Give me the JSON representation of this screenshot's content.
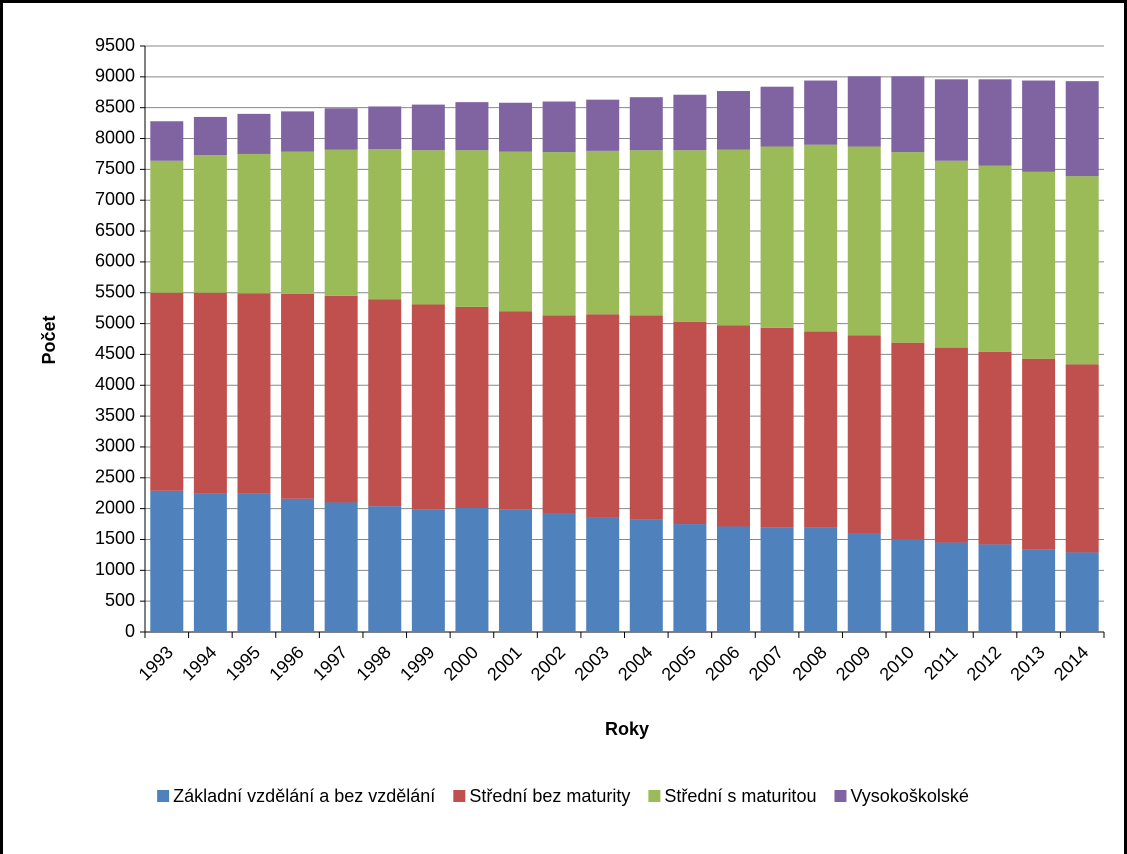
{
  "chart_data": {
    "type": "stacked_bar",
    "x_label": "Roky",
    "y_label": "Počet",
    "categories": [
      "1993",
      "1994",
      "1995",
      "1996",
      "1997",
      "1998",
      "1999",
      "2000",
      "2001",
      "2002",
      "2003",
      "2004",
      "2005",
      "2006",
      "2007",
      "2008",
      "2009",
      "2010",
      "2011",
      "2012",
      "2013",
      "2014"
    ],
    "series": [
      {
        "name": "Základní vzdělání a bez vzdělání",
        "color": "#4f81bd",
        "values": [
          2290,
          2240,
          2240,
          2160,
          2100,
          2040,
          1990,
          2010,
          1990,
          1920,
          1850,
          1820,
          1750,
          1710,
          1700,
          1690,
          1590,
          1500,
          1450,
          1420,
          1340,
          1290
        ]
      },
      {
        "name": "Střední bez maturity",
        "color": "#c0504d",
        "values": [
          3210,
          3260,
          3250,
          3320,
          3350,
          3350,
          3320,
          3260,
          3210,
          3210,
          3300,
          3310,
          3280,
          3260,
          3230,
          3180,
          3220,
          3190,
          3160,
          3120,
          3090,
          3050
        ]
      },
      {
        "name": "Střední s maturitou",
        "color": "#9bbb59",
        "values": [
          2140,
          2230,
          2260,
          2310,
          2370,
          2440,
          2500,
          2540,
          2590,
          2650,
          2650,
          2680,
          2780,
          2850,
          2940,
          3030,
          3060,
          3090,
          3030,
          3020,
          3030,
          3050
        ]
      },
      {
        "name": "Vysokoškolské",
        "color": "#8064a2",
        "values": [
          640,
          620,
          650,
          650,
          670,
          690,
          740,
          780,
          790,
          820,
          830,
          860,
          900,
          950,
          970,
          1040,
          1140,
          1230,
          1320,
          1400,
          1480,
          1540
        ]
      }
    ],
    "ylim": [
      0,
      9500
    ],
    "yticks": [
      0,
      500,
      1000,
      1500,
      2000,
      2500,
      3000,
      3500,
      4000,
      4500,
      5000,
      5500,
      6000,
      6500,
      7000,
      7500,
      8000,
      8500,
      9000,
      9500
    ],
    "grid": true,
    "legend": "bottom"
  }
}
